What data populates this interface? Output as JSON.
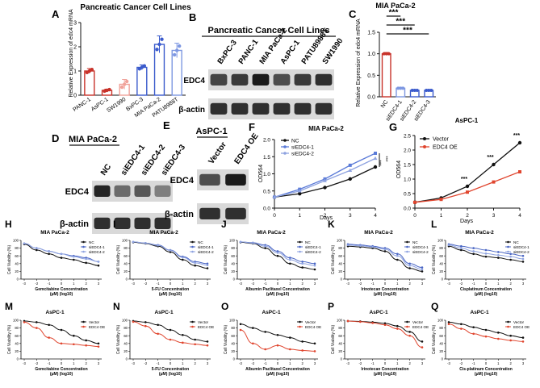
{
  "colors": {
    "black": "#111111",
    "blue": "#5b7bd8",
    "lightblue": "#8fa3e0",
    "red": "#e0452e",
    "bar_red": "#c8322a",
    "bar_lightred": "#f0a29a",
    "bar_blue": "#3b5bcc",
    "bar_midblue": "#7e98e2"
  },
  "panels": {
    "A": {
      "letter": "A",
      "title": "Pancreatic Cancer Cell Lines",
      "ylabel": "Relative Expression of edc4 mRNA",
      "yticks": [
        "0",
        "1",
        "2",
        "3"
      ],
      "chart_data": {
        "type": "bar",
        "categories": [
          "PANC-1",
          "AsPC-1",
          "SW1990",
          "BxPC-3",
          "MIA PaCa-2",
          "PATU8988T"
        ],
        "values": [
          1.0,
          0.2,
          0.45,
          1.15,
          2.1,
          1.85
        ],
        "errors": [
          0.1,
          0.05,
          0.2,
          0.1,
          0.35,
          0.3
        ],
        "ylim": [
          0,
          3
        ],
        "xlabel": "",
        "ylabel": "Relative Expression of edc4 mRNA",
        "title": "Pancreatic Cancer Cell Lines"
      }
    },
    "B": {
      "letter": "B",
      "title": "Pancreatic Cancer Cell Lines",
      "lanes": [
        "BxPC-3",
        "PANC-1",
        "MIA PaCa-2",
        "AsPC-1",
        "PATU8988T",
        "SW1990"
      ],
      "rows": [
        "EDC4",
        "β-actin"
      ]
    },
    "C": {
      "letter": "C",
      "title": "MIA PaCa-2",
      "ylabel": "Relative Expression of edc4 mRNA",
      "yticks": [
        "0.0",
        "0.5",
        "1.0",
        "1.5"
      ],
      "significance": [
        "***",
        "***",
        "***"
      ],
      "chart_data": {
        "type": "bar",
        "categories": [
          "NC",
          "siEDC4-1",
          "siEDC4-2",
          "siEDC4-3"
        ],
        "values": [
          1.0,
          0.2,
          0.15,
          0.15
        ],
        "errors": [
          0.03,
          0.02,
          0.02,
          0.02
        ],
        "ylim": [
          0,
          1.5
        ],
        "xlabel": "",
        "ylabel": "Relative Expression of edc4 mRNA",
        "title": "MIA PaCa-2"
      }
    },
    "D": {
      "letter": "D",
      "title": "MIA PaCa-2",
      "lanes": [
        "NC",
        "siEDC4-1",
        "siEDC4-2",
        "siEDC4-3"
      ],
      "rows": [
        "EDC4",
        "β-actin"
      ]
    },
    "E": {
      "letter": "E",
      "title": "AsPC-1",
      "lanes": [
        "Vector",
        "EDC4 OE"
      ],
      "rows": [
        "EDC4",
        "β-actin"
      ]
    },
    "F": {
      "letter": "F",
      "title": "MIA PaCa-2",
      "ylabel": "OD564",
      "xlabel": "Days",
      "yticks": [
        "0.0",
        "0.5",
        "1.0",
        "1.5",
        "2.0"
      ],
      "xticks": [
        "0",
        "1",
        "2",
        "3",
        "4"
      ],
      "legend": [
        "NC",
        "siEDC4-1",
        "siEDC4-2"
      ],
      "significance": [
        "***",
        "***"
      ],
      "chart_data": {
        "type": "line",
        "x": [
          0,
          1,
          2,
          3,
          4
        ],
        "series": [
          {
            "name": "NC",
            "values": [
              0.32,
              0.42,
              0.6,
              0.85,
              1.2
            ]
          },
          {
            "name": "siEDC4-1",
            "values": [
              0.32,
              0.55,
              0.85,
              1.25,
              1.6
            ]
          },
          {
            "name": "siEDC4-2",
            "values": [
              0.32,
              0.5,
              0.8,
              1.1,
              1.45
            ]
          }
        ],
        "xlim": [
          0,
          4
        ],
        "ylim": [
          0,
          2
        ],
        "xlabel": "Days",
        "ylabel": "OD564",
        "title": "MIA PaCa-2"
      }
    },
    "G": {
      "letter": "G",
      "title": "AsPC-1",
      "ylabel": "OD564",
      "xlabel": "Days",
      "yticks": [
        "0.0",
        "0.5",
        "1.0",
        "1.5",
        "2.0",
        "2.5"
      ],
      "xticks": [
        "0",
        "1",
        "2",
        "3",
        "4"
      ],
      "legend": [
        "Vector",
        "EDC4 OE"
      ],
      "significance": [
        "***",
        "***",
        "***"
      ],
      "chart_data": {
        "type": "line",
        "x": [
          0,
          1,
          2,
          3,
          4
        ],
        "series": [
          {
            "name": "Vector",
            "values": [
              0.2,
              0.35,
              0.75,
              1.5,
              2.25
            ]
          },
          {
            "name": "EDC4 OE",
            "values": [
              0.2,
              0.3,
              0.55,
              0.9,
              1.25
            ]
          }
        ],
        "xlim": [
          0,
          4
        ],
        "ylim": [
          0,
          2.5
        ],
        "xlabel": "Days",
        "ylabel": "OD564",
        "title": "AsPC-1"
      }
    },
    "H": {
      "letter": "H",
      "title": "MIA PaCa-2",
      "xlabel_line1": "Gemcitabine Concentration",
      "xlabel_line2": "(μM) (log10)",
      "legend": [
        "NC",
        "siEDC4-1",
        "siEDC4-2"
      ]
    },
    "I": {
      "letter": "I",
      "title": "MIA PaCa-2",
      "xlabel_line1": "5-FU Concentration",
      "xlabel_line2": "(μM) (log10)",
      "legend": [
        "NC",
        "siEDC4-1",
        "siEDC4-2"
      ]
    },
    "J": {
      "letter": "J",
      "title": "MIA PaCa-2",
      "xlabel_line1": "Albumin Paclitaxel Concentration",
      "xlabel_line2": "(μM) (log10)",
      "legend": [
        "NC",
        "siEDC4-1",
        "siEDC4-2"
      ]
    },
    "K": {
      "letter": "K",
      "title": "MIA PaCa-2",
      "xlabel_line1": "Irinotecan Concentration",
      "xlabel_line2": "(μM) (log10)",
      "legend": [
        "NC",
        "siEDC4-1",
        "siEDC4-2"
      ]
    },
    "L": {
      "letter": "L",
      "title": "MIA PaCa-2",
      "xlabel_line1": "Cisplatinum Concentration",
      "xlabel_line2": "(μM) (log10)",
      "legend": [
        "NC",
        "siEDC4-1",
        "siEDC4-2"
      ]
    },
    "M": {
      "letter": "M",
      "title": "AsPC-1",
      "xlabel_line1": "Gemcitabine Concentration",
      "xlabel_line2": "(μM) (log10)",
      "legend": [
        "Vector",
        "EDC4 OE"
      ]
    },
    "N": {
      "letter": "N",
      "title": "AsPC-1",
      "xlabel_line1": "5-FU Concentration",
      "xlabel_line2": "(μM) (log10)",
      "legend": [
        "Vector",
        "EDC4 OE"
      ]
    },
    "O": {
      "letter": "O",
      "title": "AsPC-1",
      "xlabel_line1": "Albumin Paclitaxel Concentration",
      "xlabel_line2": "(μM) (log10)",
      "legend": [
        "Vector",
        "EDC4 OE"
      ]
    },
    "P": {
      "letter": "P",
      "title": "AsPC-1",
      "xlabel_line1": "Irinotecan Concentration",
      "xlabel_line2": "(μM) (log10)",
      "legend": [
        "Vector",
        "EDC4 OE"
      ]
    },
    "Q": {
      "letter": "Q",
      "title": "AsPC-1",
      "xlabel_line1": "Cis-platinum Concentration",
      "xlabel_line2": "(μM) (log10)",
      "legend": [
        "Vector",
        "EDC4 OE"
      ]
    }
  },
  "viability": {
    "ylabel": "Cell Viability (%)",
    "yticks": [
      "0",
      "20",
      "40",
      "60",
      "80",
      "100"
    ],
    "xticks": [
      "-3",
      "-2",
      "-1",
      "0",
      "1",
      "2",
      "3"
    ]
  },
  "chart_data": [
    {
      "panel": "H",
      "type": "scatter",
      "title": "MIA PaCa-2",
      "xlabel": "Gemcitabine Concentration (μM) (log10)",
      "ylabel": "Cell Viability (%)",
      "xlim": [
        -3,
        3
      ],
      "ylim": [
        0,
        100
      ],
      "x": [
        -3,
        -2,
        -1,
        0,
        1,
        2,
        3
      ],
      "series": [
        {
          "name": "NC",
          "values": [
            90,
            75,
            65,
            55,
            50,
            42,
            35
          ]
        },
        {
          "name": "siEDC4-1",
          "values": [
            92,
            80,
            72,
            65,
            60,
            55,
            45
          ]
        },
        {
          "name": "siEDC4-2",
          "values": [
            92,
            80,
            72,
            65,
            58,
            52,
            45
          ]
        }
      ]
    },
    {
      "panel": "I",
      "type": "scatter",
      "title": "MIA PaCa-2",
      "xlabel": "5-FU Concentration (μM) (log10)",
      "ylabel": "Cell Viability (%)",
      "xlim": [
        -3,
        3
      ],
      "ylim": [
        0,
        100
      ],
      "x": [
        -3,
        -2,
        -1,
        0,
        1,
        2,
        3
      ],
      "series": [
        {
          "name": "NC",
          "values": [
            95,
            92,
            85,
            70,
            50,
            35,
            28
          ]
        },
        {
          "name": "siEDC4-1",
          "values": [
            96,
            93,
            88,
            75,
            58,
            45,
            40
          ]
        },
        {
          "name": "siEDC4-2",
          "values": [
            96,
            93,
            87,
            74,
            56,
            42,
            36
          ]
        }
      ]
    },
    {
      "panel": "J",
      "type": "scatter",
      "title": "MIA PaCa-2",
      "xlabel": "Albumin Paclitaxel Concentration (μM) (log10)",
      "ylabel": "Cell Viability (%)",
      "xlim": [
        -3,
        3
      ],
      "ylim": [
        0,
        100
      ],
      "x": [
        -3,
        -2,
        -1,
        0,
        1,
        2,
        3
      ],
      "series": [
        {
          "name": "NC",
          "values": [
            95,
            92,
            80,
            60,
            40,
            30,
            25
          ]
        },
        {
          "name": "siEDC4-1",
          "values": [
            96,
            94,
            88,
            72,
            55,
            45,
            40
          ]
        },
        {
          "name": "siEDC4-2",
          "values": [
            96,
            93,
            85,
            68,
            50,
            40,
            35
          ]
        }
      ]
    },
    {
      "panel": "K",
      "type": "scatter",
      "title": "MIA PaCa-2",
      "xlabel": "Irinotecan Concentration (μM) (log10)",
      "ylabel": "Cell Viability (%)",
      "xlim": [
        -3,
        3
      ],
      "ylim": [
        0,
        100
      ],
      "x": [
        -3,
        -2,
        -1,
        0,
        1,
        2,
        3
      ],
      "series": [
        {
          "name": "NC",
          "values": [
            85,
            83,
            80,
            72,
            50,
            28,
            20
          ]
        },
        {
          "name": "siEDC4-1",
          "values": [
            90,
            88,
            85,
            80,
            65,
            40,
            30
          ]
        },
        {
          "name": "siEDC4-2",
          "values": [
            88,
            86,
            83,
            77,
            60,
            35,
            25
          ]
        }
      ]
    },
    {
      "panel": "L",
      "type": "scatter",
      "title": "MIA PaCa-2",
      "xlabel": "Cisplatinum Concentration (μM) (log10)",
      "ylabel": "Cell Viability (%)",
      "xlim": [
        -3,
        3
      ],
      "ylim": [
        0,
        100
      ],
      "x": [
        -3,
        -2,
        -1,
        0,
        1,
        2,
        3
      ],
      "series": [
        {
          "name": "NC",
          "values": [
            85,
            75,
            65,
            58,
            55,
            50,
            45
          ]
        },
        {
          "name": "siEDC4-1",
          "values": [
            90,
            85,
            80,
            75,
            70,
            65,
            60
          ]
        },
        {
          "name": "siEDC4-2",
          "values": [
            88,
            80,
            72,
            66,
            62,
            58,
            52
          ]
        }
      ]
    },
    {
      "panel": "M",
      "type": "scatter",
      "title": "AsPC-1",
      "xlabel": "Gemcitabine Concentration (μM) (log10)",
      "ylabel": "Cell Viability (%)",
      "xlim": [
        -3,
        3
      ],
      "ylim": [
        0,
        100
      ],
      "x": [
        -3,
        -2,
        -1,
        0,
        1,
        2,
        3
      ],
      "series": [
        {
          "name": "Vector",
          "values": [
            98,
            95,
            88,
            75,
            60,
            48,
            40
          ]
        },
        {
          "name": "EDC4 OE",
          "values": [
            95,
            80,
            55,
            40,
            38,
            35,
            32
          ]
        }
      ]
    },
    {
      "panel": "N",
      "type": "scatter",
      "title": "AsPC-1",
      "xlabel": "5-FU Concentration (μM) (log10)",
      "ylabel": "Cell Viability (%)",
      "xlim": [
        -3,
        3
      ],
      "ylim": [
        0,
        100
      ],
      "x": [
        -3,
        -2,
        -1,
        0,
        1,
        2,
        3
      ],
      "series": [
        {
          "name": "Vector",
          "values": [
            98,
            95,
            88,
            75,
            62,
            50,
            45
          ]
        },
        {
          "name": "EDC4 OE",
          "values": [
            96,
            85,
            65,
            50,
            42,
            38,
            35
          ]
        }
      ]
    },
    {
      "panel": "O",
      "type": "scatter",
      "title": "AsPC-1",
      "xlabel": "Albumin Paclitaxel Concentration (μM) (log10)",
      "ylabel": "Cell Viability (%)",
      "xlim": [
        -3,
        3
      ],
      "ylim": [
        0,
        100
      ],
      "x": [
        -3,
        -2,
        -1,
        0,
        1,
        2,
        3
      ],
      "series": [
        {
          "name": "Vector",
          "values": [
            90,
            80,
            70,
            62,
            55,
            45,
            40
          ]
        },
        {
          "name": "EDC4 OE",
          "values": [
            75,
            40,
            25,
            35,
            25,
            22,
            20
          ]
        }
      ]
    },
    {
      "panel": "P",
      "type": "scatter",
      "title": "AsPC-1",
      "xlabel": "Irinotecan Concentration (μM) (log10)",
      "ylabel": "Cell Viability (%)",
      "xlim": [
        -3,
        3
      ],
      "ylim": [
        0,
        100
      ],
      "x": [
        -3,
        -2,
        -1,
        0,
        1,
        2,
        3
      ],
      "series": [
        {
          "name": "Vector",
          "values": [
            98,
            97,
            95,
            92,
            85,
            70,
            45
          ]
        },
        {
          "name": "EDC4 OE",
          "values": [
            98,
            96,
            93,
            88,
            78,
            60,
            30
          ]
        }
      ]
    },
    {
      "panel": "Q",
      "type": "scatter",
      "title": "AsPC-1",
      "xlabel": "Cis-platinum Concentration (μM) (log10)",
      "ylabel": "Cell Viability (%)",
      "xlim": [
        -3,
        3
      ],
      "ylim": [
        0,
        100
      ],
      "x": [
        -3,
        -2,
        -1,
        0,
        1,
        2,
        3
      ],
      "series": [
        {
          "name": "Vector",
          "values": [
            95,
            90,
            82,
            75,
            68,
            60,
            55
          ]
        },
        {
          "name": "EDC4 OE",
          "values": [
            90,
            78,
            65,
            58,
            52,
            48,
            45
          ]
        }
      ]
    }
  ]
}
